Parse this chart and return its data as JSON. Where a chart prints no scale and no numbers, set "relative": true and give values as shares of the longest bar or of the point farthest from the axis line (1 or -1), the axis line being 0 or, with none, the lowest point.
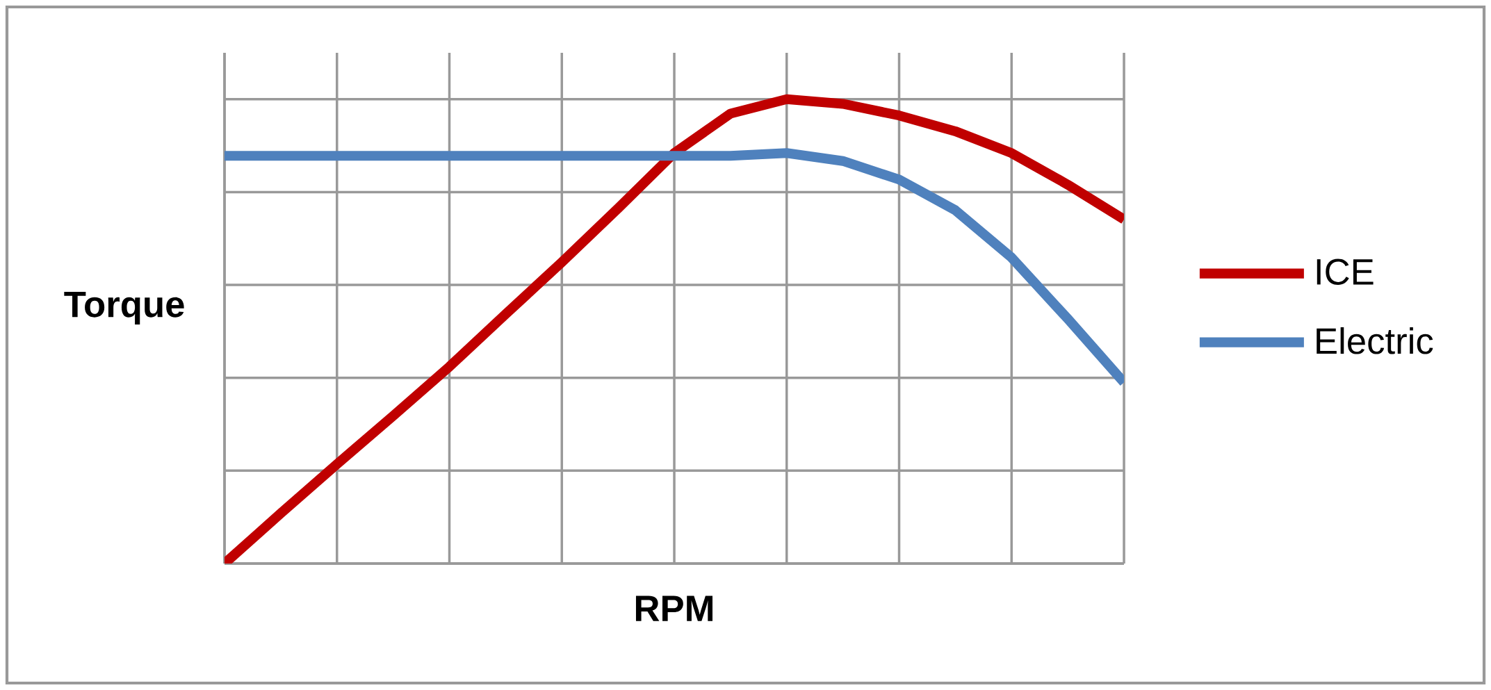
{
  "chart_data": {
    "type": "line",
    "relative": true,
    "xlabel": "RPM",
    "ylabel": "Torque",
    "categories": [
      null,
      null,
      null,
      null,
      null,
      null,
      null,
      null,
      null,
      null,
      null,
      null,
      null,
      null,
      null,
      null,
      null
    ],
    "series": [
      {
        "name": "ICE",
        "color": "#c00000",
        "values": [
          0,
          0.108,
          0.214,
          0.318,
          0.424,
          0.537,
          0.649,
          0.765,
          0.884,
          0.969,
          1.0,
          0.99,
          0.965,
          0.931,
          0.884,
          0.816,
          0.741
        ]
      },
      {
        "name": "Electric",
        "color": "#4f81bd",
        "values": [
          0.878,
          0.878,
          0.878,
          0.878,
          0.878,
          0.878,
          0.878,
          0.878,
          0.878,
          0.878,
          0.884,
          0.867,
          0.827,
          0.761,
          0.659,
          0.527,
          0.39
        ]
      }
    ],
    "grid": true,
    "legend": "right",
    "marker": "none",
    "line_style": "solid"
  }
}
